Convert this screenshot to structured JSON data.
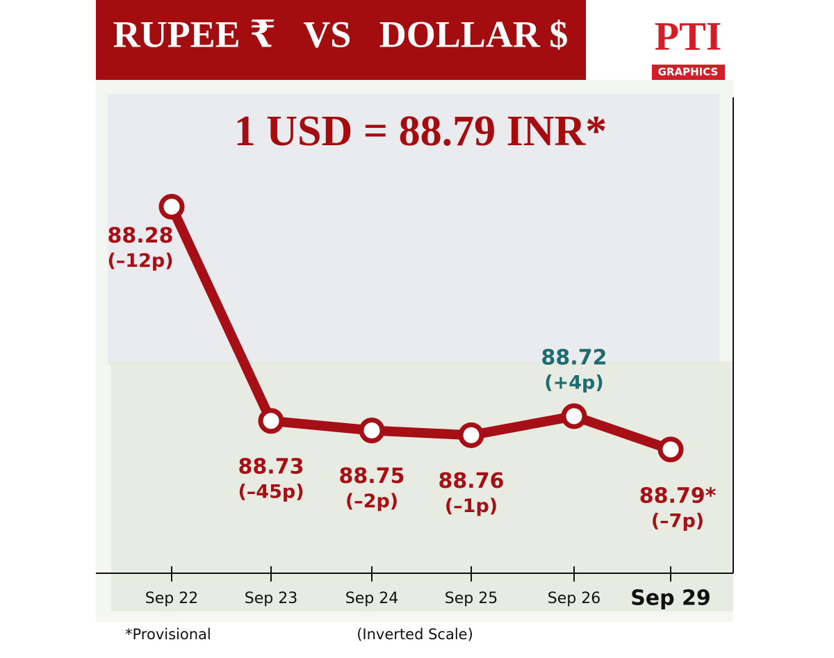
{
  "chart_data": {
    "type": "line",
    "title": "RUPEE ₹   VS   DOLLAR $",
    "logo": "PTI",
    "logo_caption": "GRAPHICS",
    "headline": "1 USD = 88.79 INR*",
    "footnote": "*Provisional",
    "scale_note": "(Inverted Scale)",
    "categories": [
      "Sep 22",
      "Sep 23",
      "Sep 24",
      "Sep 25",
      "Sep 26",
      "Sep 29"
    ],
    "values": [
      88.28,
      88.73,
      88.75,
      88.76,
      88.72,
      88.79
    ],
    "value_labels": [
      "88.28",
      "88.73",
      "88.75",
      "88.76",
      "88.72",
      "88.79*"
    ],
    "changes": [
      "(–12p)",
      "(–45p)",
      "(–2p)",
      "(–1p)",
      "(+4p)",
      "(–7p)"
    ],
    "label_colors": [
      "#a50f15",
      "#a50f15",
      "#a50f15",
      "#a50f15",
      "#1e6b70",
      "#a50f15"
    ],
    "color": "#a50f15",
    "ylim": [
      88.05,
      89.05
    ],
    "y_inverted": true
  }
}
